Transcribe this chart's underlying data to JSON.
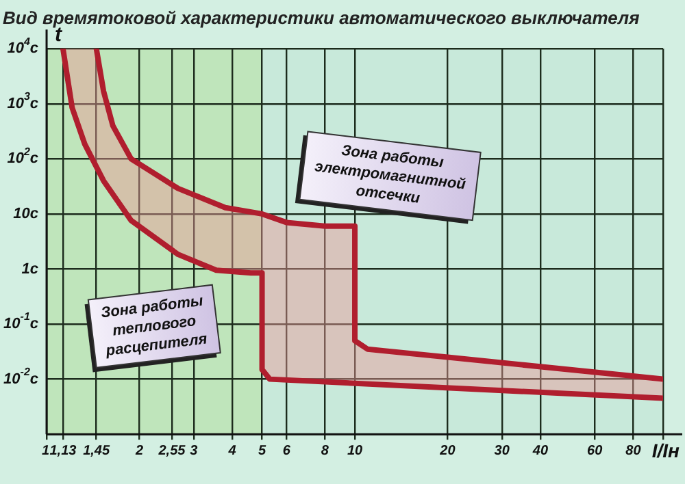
{
  "chart_data": {
    "type": "line",
    "title": "Вид времятоковой характеристики автоматического выключателя",
    "xlabel": "I/Iн",
    "ylabel": "t",
    "log": "xy",
    "grid": true,
    "legend": false,
    "marker": "none",
    "line_style": "solid",
    "xlim": [
      1,
      100
    ],
    "xticks": [
      1,
      {
        "value": 1.13,
        "label": "1,13"
      },
      {
        "value": 1.45,
        "label": "1,45"
      },
      2,
      {
        "value": 2.55,
        "label": "2,55"
      },
      3,
      4,
      5,
      6,
      8,
      10,
      20,
      30,
      40,
      60,
      80,
      {
        "value": 100,
        "label": null
      }
    ],
    "ylim": [
      0.001,
      10000
    ],
    "yticks": [
      {
        "value": 0.001,
        "label": null
      },
      {
        "value": 0.01,
        "label": "10$^{-2}$с"
      },
      {
        "value": 0.1,
        "label": "10$^{-1}$с"
      },
      {
        "value": 1,
        "label": "1с"
      },
      {
        "value": 10,
        "label": "10с"
      },
      {
        "value": 100,
        "label": "10$^{2}$с"
      },
      {
        "value": 1000,
        "label": "10$^{3}$с"
      },
      {
        "value": 10000,
        "label": "10$^{4}$с"
      }
    ],
    "series": [
      {
        "color": "#b01e2e",
        "x": [
          1.13,
          1.21,
          1.33,
          1.53,
          1.88,
          2.67,
          3.55,
          4.6,
          5,
          5,
          5.3,
          100
        ],
        "values": [
          10000,
          850,
          185,
          40,
          7.6,
          1.84,
          0.95,
          0.85,
          0.85,
          0.015,
          0.01,
          0.0045
        ]
      },
      {
        "color": "#b01e2e",
        "x": [
          1.45,
          1.53,
          1.64,
          1.88,
          2.67,
          3.8,
          5,
          6,
          8,
          10,
          10,
          11,
          20,
          100
        ],
        "values": [
          10000,
          1700,
          400,
          100,
          29,
          13,
          10,
          7,
          6,
          6,
          0.05,
          0.035,
          0.025,
          0.01
        ]
      }
    ],
    "bands": [
      {
        "axis": "x",
        "from": 1,
        "to": 5,
        "label": "Зона работы теплового расцепителя",
        "color": "#bfe5bb"
      },
      {
        "axis": "x",
        "from": 5,
        "to": 100,
        "label": "Зона работы электромагнитной отсечки",
        "color": "#c8e9da"
      }
    ]
  }
}
